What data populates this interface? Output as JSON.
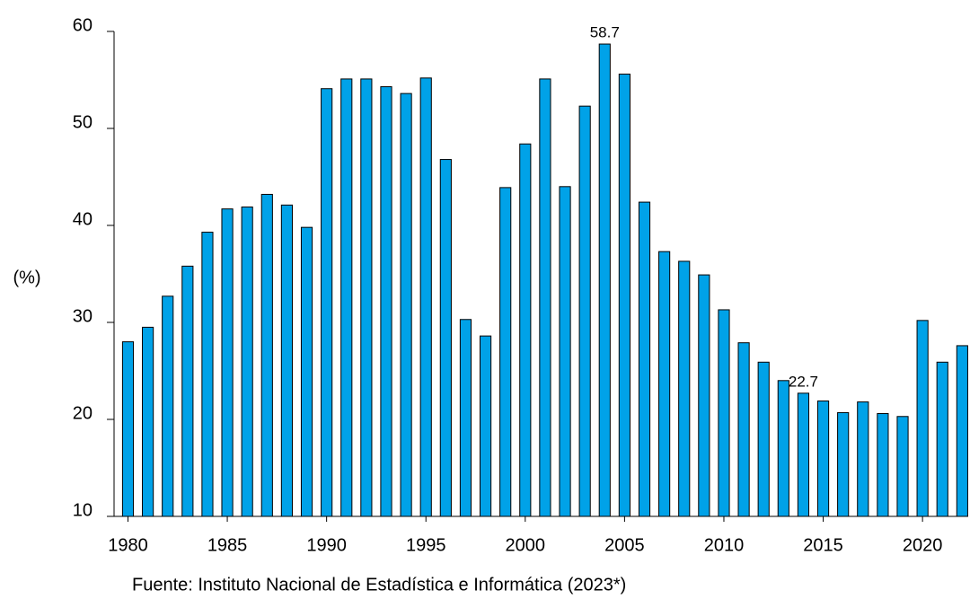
{
  "chart_data": {
    "type": "bar",
    "ylabel": "(%)",
    "source": "Fuente: Instituto Nacional de Estadística e Informática (2023*)",
    "x": [
      1980,
      1981,
      1982,
      1983,
      1984,
      1985,
      1986,
      1987,
      1988,
      1989,
      1990,
      1991,
      1992,
      1993,
      1994,
      1995,
      1996,
      1997,
      1998,
      1999,
      2000,
      2001,
      2002,
      2003,
      2004,
      2005,
      2006,
      2007,
      2008,
      2009,
      2010,
      2011,
      2012,
      2013,
      2014,
      2015,
      2016,
      2017,
      2018,
      2019,
      2020,
      2021,
      2022
    ],
    "values": [
      28.0,
      29.5,
      32.7,
      35.8,
      39.3,
      41.7,
      41.9,
      43.2,
      42.1,
      39.8,
      54.1,
      55.1,
      55.1,
      54.3,
      53.6,
      55.2,
      46.8,
      30.3,
      28.6,
      43.9,
      48.4,
      55.1,
      44.0,
      52.3,
      58.7,
      55.6,
      42.4,
      37.3,
      36.3,
      34.9,
      31.3,
      27.9,
      25.9,
      24.0,
      22.7,
      21.9,
      20.7,
      21.8,
      20.6,
      20.3,
      30.2,
      25.9,
      27.6
    ],
    "value_labels": [
      null,
      null,
      null,
      null,
      null,
      null,
      null,
      null,
      null,
      null,
      null,
      null,
      null,
      null,
      null,
      null,
      null,
      null,
      null,
      null,
      null,
      null,
      null,
      null,
      "58.7",
      null,
      null,
      null,
      null,
      null,
      null,
      null,
      null,
      null,
      "22.7",
      null,
      null,
      null,
      null,
      null,
      null,
      null,
      null
    ],
    "color": "#00a2e8",
    "xlim": [
      1979.3,
      2022.3
    ],
    "xticks": [
      1980,
      1985,
      1990,
      1995,
      2000,
      2005,
      2010,
      2015,
      2020
    ],
    "ylim": [
      10,
      60
    ],
    "yticks": [
      10,
      20,
      30,
      40,
      50,
      60
    ]
  }
}
